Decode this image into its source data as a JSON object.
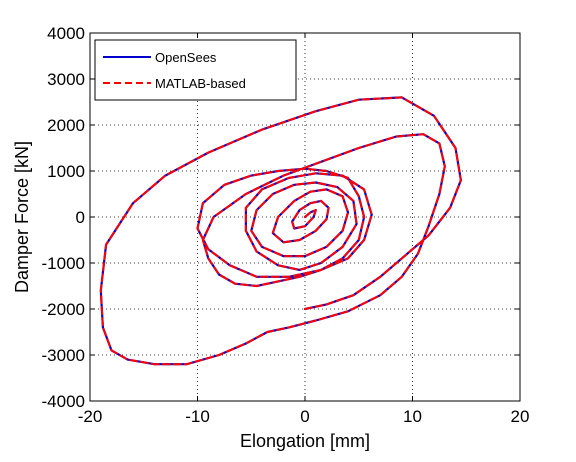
{
  "chart_data": {
    "type": "line",
    "xlabel": "Elongation [mm]",
    "ylabel": "Damper Force [kN]",
    "xlim": [
      -20,
      20
    ],
    "ylim": [
      -4000,
      4000
    ],
    "xticks": [
      -20,
      -10,
      0,
      10,
      20
    ],
    "yticks": [
      -4000,
      -3000,
      -2000,
      -1000,
      0,
      1000,
      2000,
      3000,
      4000
    ],
    "grid": true,
    "legend_position": "top-left",
    "series": [
      {
        "name": "OpenSees",
        "color": "#0000cc",
        "style": "solid",
        "x": [
          0,
          2,
          4.5,
          7,
          9,
          11.5,
          13.5,
          14.5,
          14.0,
          12.0,
          9.0,
          5.0,
          1.0,
          -4.0,
          -9.0,
          -13.0,
          -16.0,
          -18.5,
          -19.0,
          -18.8,
          -18.0,
          -16.5,
          -14.0,
          -11.0,
          -8.0,
          -5.5,
          -3.5,
          -1.5,
          1.0,
          4.0,
          7.0,
          9.0,
          10.5,
          11.5,
          12.5,
          13.0,
          12.5,
          11.0,
          8.5,
          5.0,
          1.5,
          -2.0,
          -5.5,
          -8.5,
          -9.5,
          -9.0,
          -8.0,
          -6.5,
          -4.5,
          -2.5,
          -0.5,
          1.5,
          3.5,
          5.0,
          5.5,
          5.0,
          4.0,
          2.0,
          0.0,
          -2.5,
          -5.0,
          -7.5,
          -9.5,
          -10.0,
          -9.0,
          -7.0,
          -4.5,
          -1.5,
          1.5,
          4.0,
          5.5,
          6.2,
          5.5,
          3.5,
          1.0,
          -1.5,
          -4.0,
          -5.5,
          -5.5,
          -4.5,
          -2.5,
          -0.5,
          1.5,
          3.5,
          4.8,
          4.5,
          3.0,
          1.0,
          -1.0,
          -3.0,
          -4.5,
          -5.0,
          -4.0,
          -2.0,
          0.0,
          2.0,
          3.5,
          4.0,
          3.5,
          2.0,
          0.5,
          -1.0,
          -2.5,
          -3.0,
          -2.0,
          -0.5,
          1.0,
          2.0,
          2.2,
          1.5,
          0.5,
          -0.5,
          -1.2,
          -1.0,
          0.0,
          0.8,
          1.0,
          0.5,
          0
        ],
        "y": [
          -2000,
          -1900,
          -1700,
          -1300,
          -900,
          -400,
          200,
          800,
          1500,
          2200,
          2600,
          2550,
          2300,
          1900,
          1400,
          900,
          300,
          -600,
          -1600,
          -2400,
          -2900,
          -3100,
          -3200,
          -3200,
          -3000,
          -2750,
          -2500,
          -2400,
          -2250,
          -2050,
          -1700,
          -1300,
          -800,
          -200,
          500,
          1100,
          1600,
          1800,
          1750,
          1500,
          1200,
          900,
          500,
          0,
          -500,
          -900,
          -1250,
          -1450,
          -1500,
          -1400,
          -1300,
          -1150,
          -900,
          -500,
          0,
          450,
          850,
          1000,
          1050,
          1000,
          900,
          700,
          300,
          -250,
          -700,
          -1050,
          -1300,
          -1300,
          -1150,
          -900,
          -500,
          50,
          600,
          900,
          950,
          850,
          600,
          200,
          -300,
          -750,
          -1050,
          -1150,
          -1000,
          -650,
          -150,
          350,
          650,
          750,
          700,
          500,
          150,
          -300,
          -650,
          -850,
          -850,
          -650,
          -300,
          100,
          450,
          600,
          550,
          350,
          0,
          -350,
          -550,
          -500,
          -300,
          -50,
          200,
          350,
          300,
          150,
          -100,
          -250,
          -200,
          0,
          150,
          100,
          0
        ]
      },
      {
        "name": "MATLAB-based",
        "color": "#ff0000",
        "style": "dashed",
        "x": [
          0,
          2,
          4.5,
          7,
          9,
          11.5,
          13.5,
          14.5,
          14.0,
          12.0,
          9.0,
          5.0,
          1.0,
          -4.0,
          -9.0,
          -13.0,
          -16.0,
          -18.5,
          -19.0,
          -18.8,
          -18.0,
          -16.5,
          -14.0,
          -11.0,
          -8.0,
          -5.5,
          -3.5,
          -1.5,
          1.0,
          4.0,
          7.0,
          9.0,
          10.5,
          11.5,
          12.5,
          13.0,
          12.5,
          11.0,
          8.5,
          5.0,
          1.5,
          -2.0,
          -5.5,
          -8.5,
          -9.5,
          -9.0,
          -8.0,
          -6.5,
          -4.5,
          -2.5,
          -0.5,
          1.5,
          3.5,
          5.0,
          5.5,
          5.0,
          4.0,
          2.0,
          0.0,
          -2.5,
          -5.0,
          -7.5,
          -9.5,
          -10.0,
          -9.0,
          -7.0,
          -4.5,
          -1.5,
          1.5,
          4.0,
          5.5,
          6.2,
          5.5,
          3.5,
          1.0,
          -1.5,
          -4.0,
          -5.5,
          -5.5,
          -4.5,
          -2.5,
          -0.5,
          1.5,
          3.5,
          4.8,
          4.5,
          3.0,
          1.0,
          -1.0,
          -3.0,
          -4.5,
          -5.0,
          -4.0,
          -2.0,
          0.0,
          2.0,
          3.5,
          4.0,
          3.5,
          2.0,
          0.5,
          -1.0,
          -2.5,
          -3.0,
          -2.0,
          -0.5,
          1.0,
          2.0,
          2.2,
          1.5,
          0.5,
          -0.5,
          -1.2,
          -1.0,
          0.0,
          0.8,
          1.0,
          0.5,
          0
        ],
        "y": [
          -2000,
          -1900,
          -1700,
          -1300,
          -900,
          -400,
          200,
          800,
          1500,
          2200,
          2600,
          2550,
          2300,
          1900,
          1400,
          900,
          300,
          -600,
          -1600,
          -2400,
          -2900,
          -3100,
          -3200,
          -3200,
          -3000,
          -2750,
          -2500,
          -2400,
          -2250,
          -2050,
          -1700,
          -1300,
          -800,
          -200,
          500,
          1100,
          1600,
          1800,
          1750,
          1500,
          1200,
          900,
          500,
          0,
          -500,
          -900,
          -1250,
          -1450,
          -1500,
          -1400,
          -1300,
          -1150,
          -900,
          -500,
          0,
          450,
          850,
          1000,
          1050,
          1000,
          900,
          700,
          300,
          -250,
          -700,
          -1050,
          -1300,
          -1300,
          -1150,
          -900,
          -500,
          50,
          600,
          900,
          950,
          850,
          600,
          200,
          -300,
          -750,
          -1050,
          -1150,
          -1000,
          -650,
          -150,
          350,
          650,
          750,
          700,
          500,
          150,
          -300,
          -650,
          -850,
          -850,
          -650,
          -300,
          100,
          450,
          600,
          550,
          350,
          0,
          -350,
          -550,
          -500,
          -300,
          -50,
          200,
          350,
          300,
          150,
          -100,
          -250,
          -200,
          0,
          150,
          100,
          0
        ]
      }
    ],
    "legend": [
      {
        "label": "OpenSees",
        "color": "#0000cc",
        "style": "solid"
      },
      {
        "label": "MATLAB-based",
        "color": "#ff0000",
        "style": "dashed"
      }
    ]
  }
}
